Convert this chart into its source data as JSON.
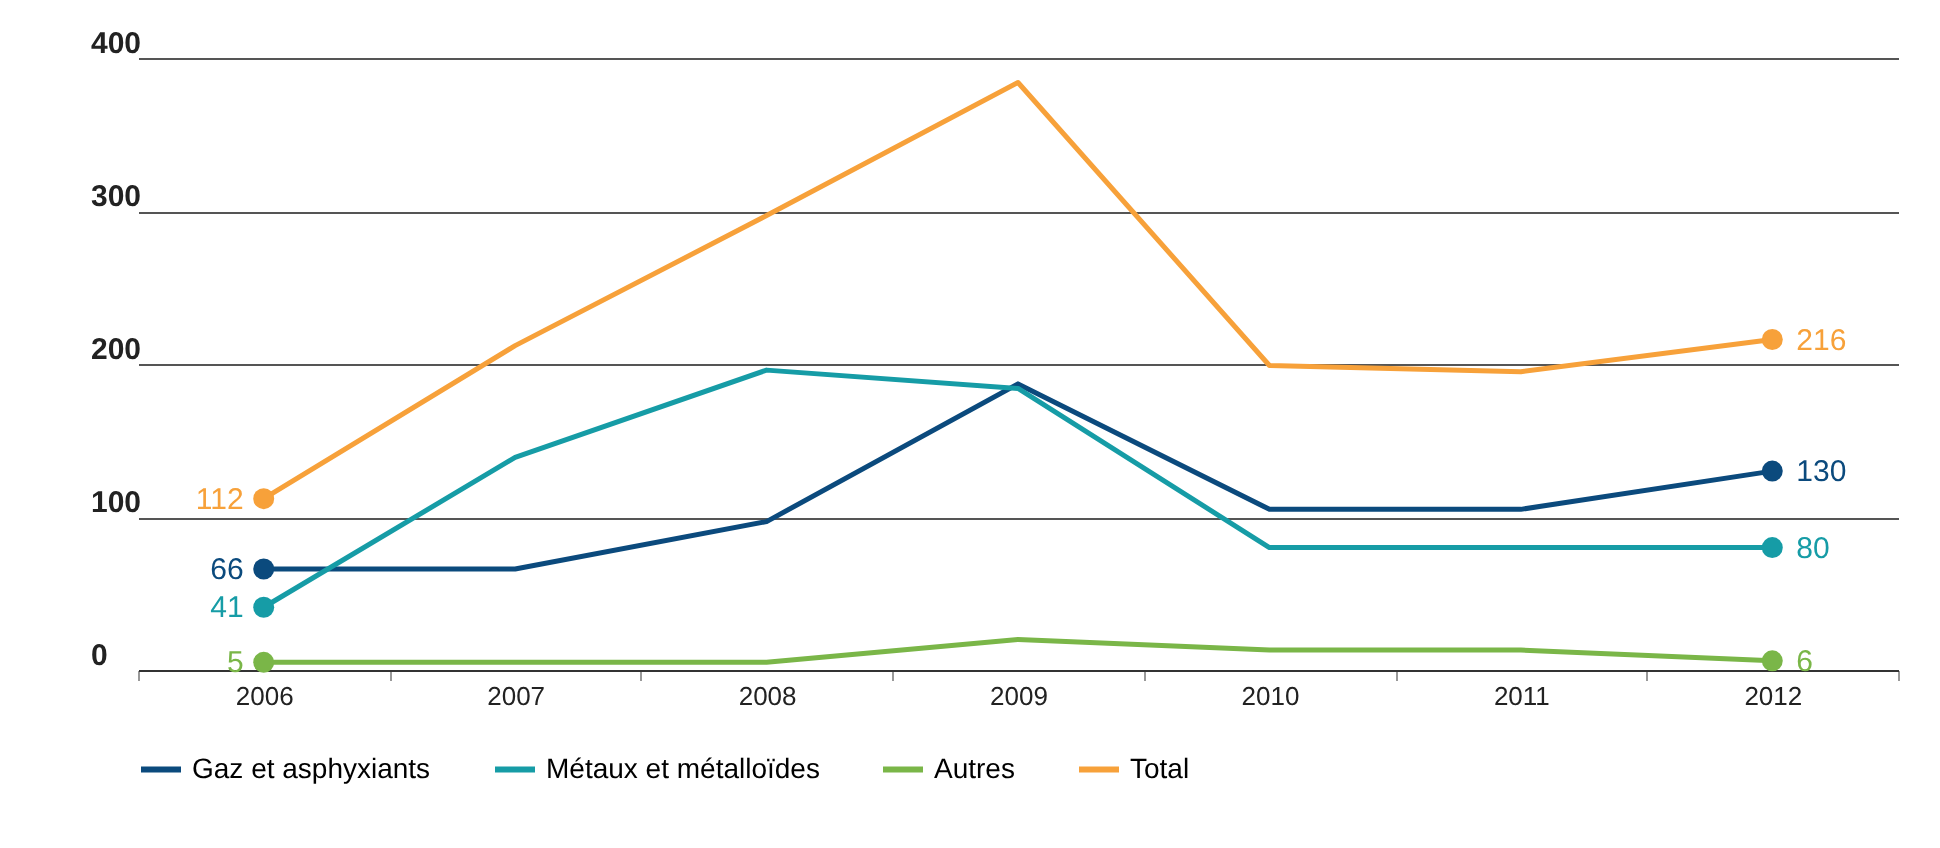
{
  "chart_data": {
    "type": "line",
    "categories": [
      "2006",
      "2007",
      "2008",
      "2009",
      "2010",
      "2011",
      "2012"
    ],
    "ylim": [
      0,
      400
    ],
    "yticks": [
      0,
      100,
      200,
      300,
      400
    ],
    "grid": "y",
    "legend": "bottom",
    "line_style": "solid",
    "series": [
      {
        "name": "Gaz et asphyxiants",
        "color": "#0b4a7d",
        "values": [
          66,
          66,
          97,
          187,
          105,
          105,
          130
        ],
        "value_labels": [
          "66",
          null,
          null,
          null,
          null,
          null,
          "130"
        ]
      },
      {
        "name": "Métaux et métalloïdes",
        "color": "#169ca6",
        "values": [
          41,
          139,
          196,
          184,
          80,
          80,
          80
        ],
        "value_labels": [
          "41",
          null,
          null,
          null,
          null,
          null,
          "80"
        ]
      },
      {
        "name": "Autres",
        "color": "#7ab648",
        "values": [
          5,
          5,
          5,
          20,
          13,
          13,
          6
        ],
        "value_labels": [
          "5",
          null,
          null,
          null,
          null,
          null,
          "6"
        ]
      },
      {
        "name": "Total",
        "color": "#f7a13a",
        "values": [
          112,
          212,
          297,
          384,
          199,
          195,
          216
        ],
        "value_labels": [
          "112",
          null,
          null,
          null,
          null,
          null,
          "216"
        ]
      }
    ]
  }
}
